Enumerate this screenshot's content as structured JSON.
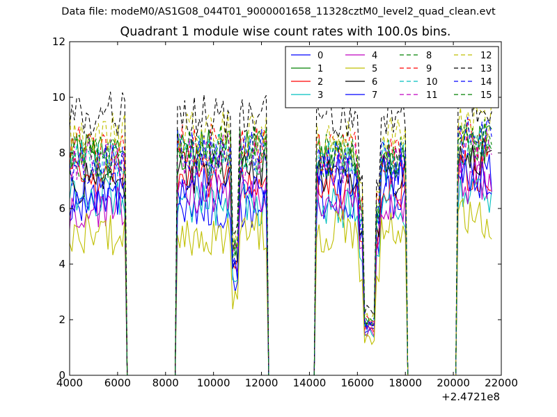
{
  "suptitle": "Data file: modeM0/AS1G08_044T01_9000001658_11328cztM0_level2_quad_clean.evt",
  "chart_data": {
    "type": "line",
    "title": "Quadrant 1 module wise count rates with 100.0s bins.",
    "xlabel": "",
    "ylabel": "",
    "x_offset_label": "+2.4721e8",
    "xlim": [
      4000,
      22000
    ],
    "ylim": [
      0,
      12
    ],
    "x_ticks": [
      4000,
      6000,
      8000,
      10000,
      12000,
      14000,
      16000,
      18000,
      20000,
      22000
    ],
    "y_ticks": [
      0,
      2,
      4,
      6,
      8,
      10,
      12
    ],
    "grid": false,
    "legend_position": "top-right",
    "legend_columns": 4,
    "bin_size_s": 100,
    "gti_segments": [
      [
        4000,
        6300
      ],
      [
        8500,
        12200
      ],
      [
        14300,
        18000
      ],
      [
        20200,
        21600
      ]
    ],
    "series": [
      {
        "name": "0",
        "color": "#0000ff",
        "dash": "solid",
        "level": 6.3,
        "segment_levels": [
          6.3,
          6.0,
          6.4,
          7.4
        ]
      },
      {
        "name": "1",
        "color": "#008000",
        "dash": "solid",
        "level": 7.9,
        "segment_levels": [
          7.9,
          8.1,
          7.6,
          8.4
        ]
      },
      {
        "name": "2",
        "color": "#ff0000",
        "dash": "solid",
        "level": 7.2,
        "segment_levels": [
          7.2,
          7.1,
          6.7,
          7.4
        ]
      },
      {
        "name": "3",
        "color": "#00bfbf",
        "dash": "solid",
        "level": 6.5,
        "segment_levels": [
          6.5,
          6.1,
          6.1,
          6.6
        ]
      },
      {
        "name": "4",
        "color": "#bf00bf",
        "dash": "solid",
        "level": 6.0,
        "segment_levels": [
          6.0,
          6.6,
          6.3,
          6.9
        ]
      },
      {
        "name": "5",
        "color": "#bfbf00",
        "dash": "solid",
        "level": 5.1,
        "segment_levels": [
          5.1,
          5.1,
          5.2,
          5.6
        ]
      },
      {
        "name": "6",
        "color": "#000000",
        "dash": "solid",
        "level": 6.9,
        "segment_levels": [
          6.9,
          7.3,
          7.2,
          7.9
        ]
      },
      {
        "name": "7",
        "color": "#0000ff",
        "dash": "solid",
        "level": 6.5,
        "segment_levels": [
          6.5,
          6.9,
          7.2,
          7.0
        ]
      },
      {
        "name": "8",
        "color": "#008000",
        "dash": "dashed",
        "level": 7.6,
        "segment_levels": [
          7.6,
          7.9,
          7.9,
          8.4
        ]
      },
      {
        "name": "9",
        "color": "#ff0000",
        "dash": "dashed",
        "level": 8.2,
        "segment_levels": [
          8.2,
          8.3,
          8.0,
          8.6
        ]
      },
      {
        "name": "10",
        "color": "#00bfbf",
        "dash": "dashed",
        "level": 7.7,
        "segment_levels": [
          7.7,
          7.9,
          7.7,
          8.2
        ]
      },
      {
        "name": "11",
        "color": "#bf00bf",
        "dash": "dashed",
        "level": 7.8,
        "segment_levels": [
          7.8,
          7.9,
          7.6,
          8.1
        ]
      },
      {
        "name": "12",
        "color": "#bfbf00",
        "dash": "dashed",
        "level": 8.7,
        "segment_levels": [
          8.7,
          8.7,
          8.5,
          9.2
        ]
      },
      {
        "name": "13",
        "color": "#000000",
        "dash": "dashed",
        "level": 9.4,
        "segment_levels": [
          9.4,
          9.3,
          9.3,
          9.8
        ]
      },
      {
        "name": "14",
        "color": "#0000ff",
        "dash": "dashed",
        "level": 7.6,
        "segment_levels": [
          7.6,
          8.1,
          7.7,
          8.6
        ]
      },
      {
        "name": "15",
        "color": "#008000",
        "dash": "dashed",
        "level": 7.9,
        "segment_levels": [
          7.9,
          8.2,
          7.8,
          8.6
        ]
      }
    ]
  }
}
